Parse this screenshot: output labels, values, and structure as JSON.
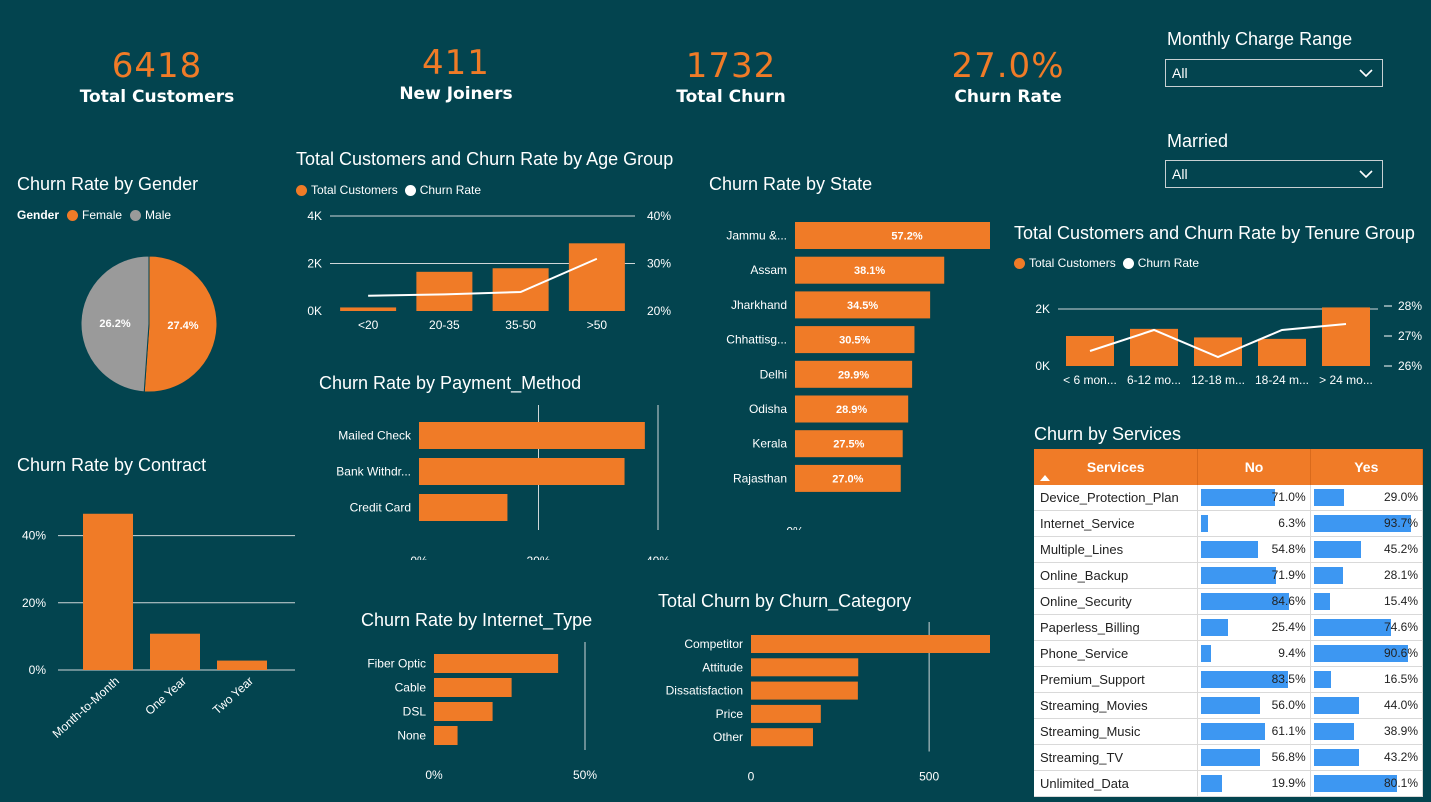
{
  "kpis": [
    {
      "value": "6418",
      "label": "Total Customers"
    },
    {
      "value": "411",
      "label": "New Joiners"
    },
    {
      "value": "1732",
      "label": "Total Churn"
    },
    {
      "value": "27.0%",
      "label": "Churn Rate"
    }
  ],
  "slicers": {
    "monthly_charge": {
      "title": "Monthly Charge Range",
      "value": "All"
    },
    "married": {
      "title": "Married",
      "value": "All"
    }
  },
  "colors": {
    "background": "#03444f",
    "orange": "#f07b27",
    "grey": "#9a9a9a",
    "blue": "#3d97f2"
  },
  "icons": {
    "dropdown": "chevron-down-icon",
    "sort": "sort-up-icon"
  },
  "gender": {
    "title": "Churn Rate by Gender",
    "legend_title": "Gender",
    "legend": [
      "Female",
      "Male"
    ]
  },
  "age": {
    "title": "Total Customers and Churn Rate by Age Group",
    "legend": [
      "Total Customers",
      "Churn Rate"
    ]
  },
  "state": {
    "title": "Churn Rate by State"
  },
  "tenure": {
    "title": "Total Customers and Churn Rate by Tenure Group",
    "legend": [
      "Total Customers",
      "Churn Rate"
    ]
  },
  "contract": {
    "title": "Churn Rate by Contract"
  },
  "payment": {
    "title": "Churn Rate by Payment_Method"
  },
  "internet": {
    "title": "Churn Rate by Internet_Type"
  },
  "category": {
    "title": "Total Churn by Churn_Category"
  },
  "services": {
    "title": "Churn by Services",
    "headers": [
      "Services",
      "No",
      "Yes"
    ],
    "rows": [
      {
        "name": "Device_Protection_Plan",
        "no": "71.0%",
        "yes": "29.0%"
      },
      {
        "name": "Internet_Service",
        "no": "6.3%",
        "yes": "93.7%"
      },
      {
        "name": "Multiple_Lines",
        "no": "54.8%",
        "yes": "45.2%"
      },
      {
        "name": "Online_Backup",
        "no": "71.9%",
        "yes": "28.1%"
      },
      {
        "name": "Online_Security",
        "no": "84.6%",
        "yes": "15.4%"
      },
      {
        "name": "Paperless_Billing",
        "no": "25.4%",
        "yes": "74.6%"
      },
      {
        "name": "Phone_Service",
        "no": "9.4%",
        "yes": "90.6%"
      },
      {
        "name": "Premium_Support",
        "no": "83.5%",
        "yes": "16.5%"
      },
      {
        "name": "Streaming_Movies",
        "no": "56.0%",
        "yes": "44.0%"
      },
      {
        "name": "Streaming_Music",
        "no": "61.1%",
        "yes": "38.9%"
      },
      {
        "name": "Streaming_TV",
        "no": "56.8%",
        "yes": "43.2%"
      },
      {
        "name": "Unlimited_Data",
        "no": "19.9%",
        "yes": "80.1%"
      }
    ]
  },
  "chart_data": [
    {
      "type": "pie",
      "title": "Churn Rate by Gender",
      "categories": [
        "Female",
        "Male"
      ],
      "values": [
        27.4,
        26.2
      ],
      "labels": [
        "27.4%",
        "26.2%"
      ]
    },
    {
      "type": "bar",
      "title": "Total Customers and Churn Rate by Age Group",
      "categories": [
        "<20",
        "20-35",
        "35-50",
        ">50"
      ],
      "series": [
        {
          "name": "Total Customers",
          "values": [
            150,
            1650,
            1800,
            2850
          ]
        },
        {
          "name": "Churn Rate",
          "values": [
            23.2,
            23.5,
            24.0,
            31.0
          ]
        }
      ],
      "y_ticks": [
        "0K",
        "2K",
        "4K"
      ],
      "y2_ticks": [
        "20%",
        "30%",
        "40%"
      ],
      "ylim": [
        0,
        4000
      ],
      "y2lim": [
        20,
        40
      ]
    },
    {
      "type": "bar",
      "title": "Churn Rate by State",
      "categories": [
        "Jammu &...",
        "Assam",
        "Jharkhand",
        "Chhattisg...",
        "Delhi",
        "Odisha",
        "Kerala",
        "Rajasthan"
      ],
      "values": [
        57.2,
        38.1,
        34.5,
        30.5,
        29.9,
        28.9,
        27.5,
        27.0
      ],
      "labels": [
        "57.2%",
        "38.1%",
        "34.5%",
        "30.5%",
        "29.9%",
        "28.9%",
        "27.5%",
        "27.0%"
      ],
      "x_ticks": [
        "0%",
        "50%"
      ],
      "xlim": [
        0,
        60
      ]
    },
    {
      "type": "bar",
      "title": "Total Customers and Churn Rate by Tenure Group",
      "categories": [
        "< 6 mon...",
        "6-12 mo...",
        "12-18 m...",
        "18-24 m...",
        "> 24 mo..."
      ],
      "series": [
        {
          "name": "Total Customers",
          "values": [
            1050,
            1300,
            1000,
            950,
            2050
          ]
        },
        {
          "name": "Churn Rate",
          "values": [
            26.5,
            27.2,
            26.3,
            27.2,
            27.4
          ]
        }
      ],
      "y_ticks": [
        "0K",
        "2K"
      ],
      "y2_ticks": [
        "26%",
        "27%",
        "28%"
      ],
      "ylim": [
        0,
        2100
      ],
      "y2lim": [
        26,
        28
      ]
    },
    {
      "type": "bar",
      "title": "Churn Rate by Contract",
      "categories": [
        "Month-to-Month",
        "One Year",
        "Two Year"
      ],
      "values": [
        46.5,
        10.8,
        2.8
      ],
      "y_ticks": [
        "0%",
        "20%",
        "40%"
      ],
      "ylim": [
        0,
        50
      ]
    },
    {
      "type": "bar",
      "title": "Churn Rate by Payment_Method",
      "categories": [
        "Mailed Check",
        "Bank Withdr...",
        "Credit Card"
      ],
      "values": [
        37.8,
        34.4,
        14.8
      ],
      "x_ticks": [
        "0%",
        "20%",
        "40%"
      ],
      "xlim": [
        0,
        40
      ]
    },
    {
      "type": "bar",
      "title": "Churn Rate by Internet_Type",
      "categories": [
        "Fiber Optic",
        "Cable",
        "DSL",
        "None"
      ],
      "values": [
        41.1,
        25.7,
        19.4,
        7.8
      ],
      "x_ticks": [
        "0%",
        "50%"
      ],
      "xlim": [
        0,
        50
      ]
    },
    {
      "type": "bar",
      "title": "Total Churn by Churn_Category",
      "categories": [
        "Competitor",
        "Attitude",
        "Dissatisfaction",
        "Price",
        "Other"
      ],
      "values": [
        761,
        301,
        300,
        196,
        174
      ],
      "x_ticks": [
        "0",
        "500"
      ],
      "xlim": [
        0,
        800
      ]
    }
  ]
}
